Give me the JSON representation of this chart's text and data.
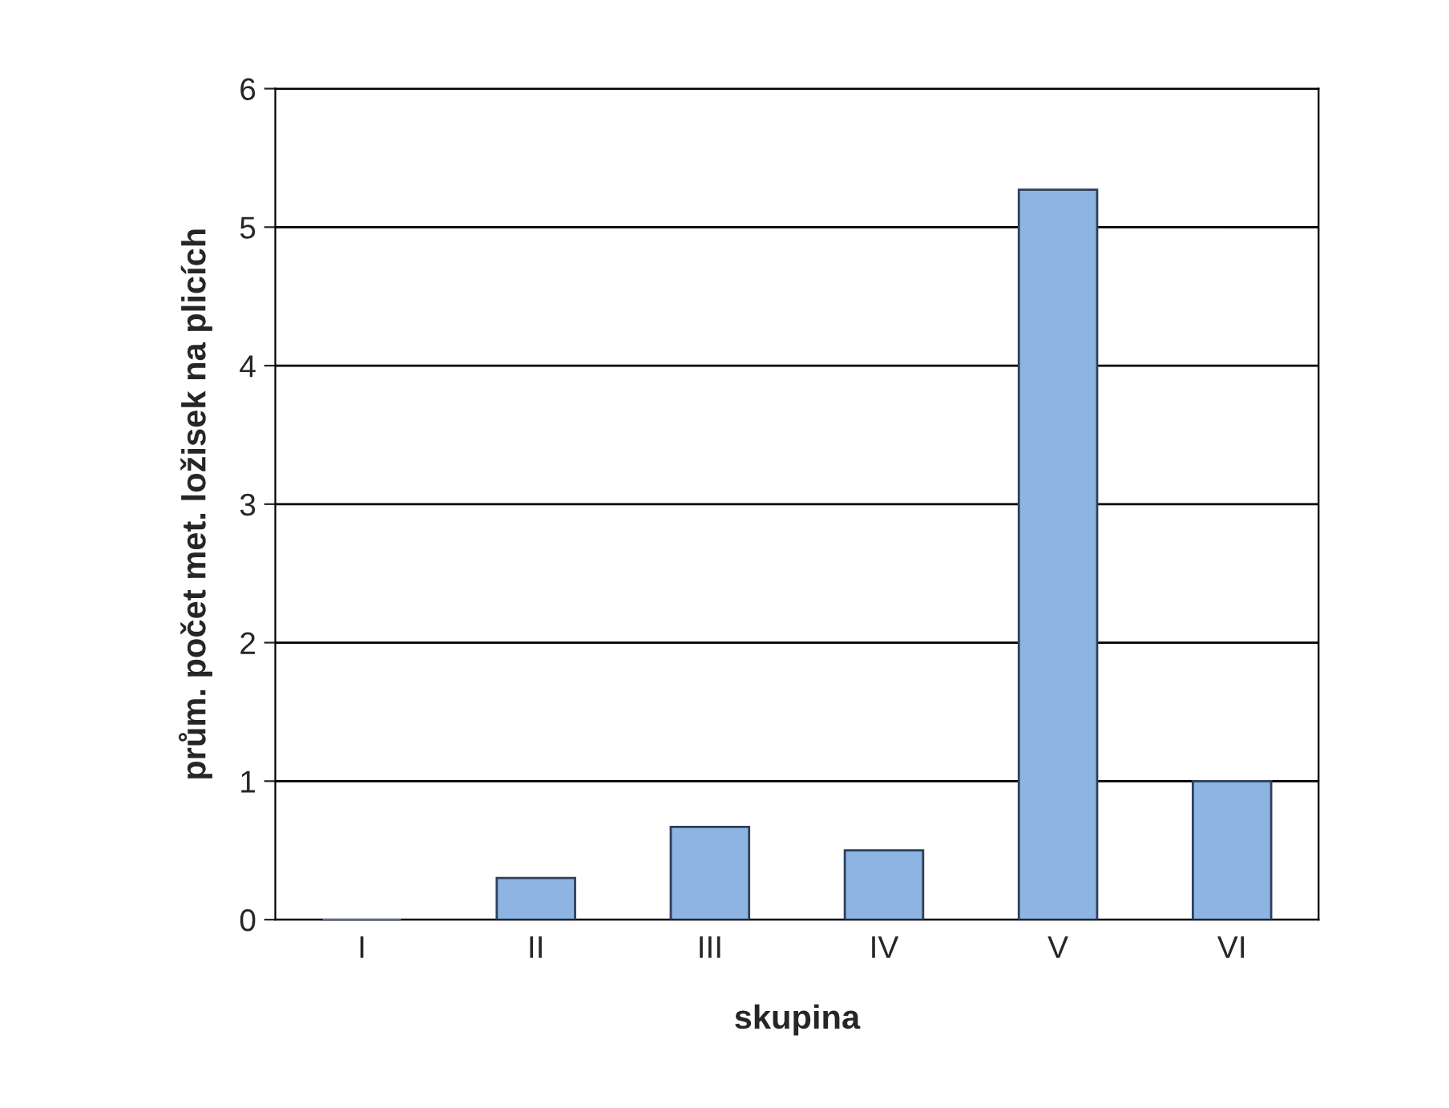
{
  "chart_data": {
    "type": "bar",
    "xlabel": "skupina",
    "ylabel": "prům. počet met. ložisek na plicích",
    "categories": [
      "I",
      "II",
      "III",
      "IV",
      "V",
      "VI"
    ],
    "values": [
      0,
      0.3,
      0.67,
      0.5,
      5.27,
      1.0
    ],
    "color": "#8db4e2",
    "ylim": [
      0,
      6
    ],
    "yticks": [
      0,
      1,
      2,
      3,
      4,
      5,
      6
    ],
    "grid": "y"
  }
}
